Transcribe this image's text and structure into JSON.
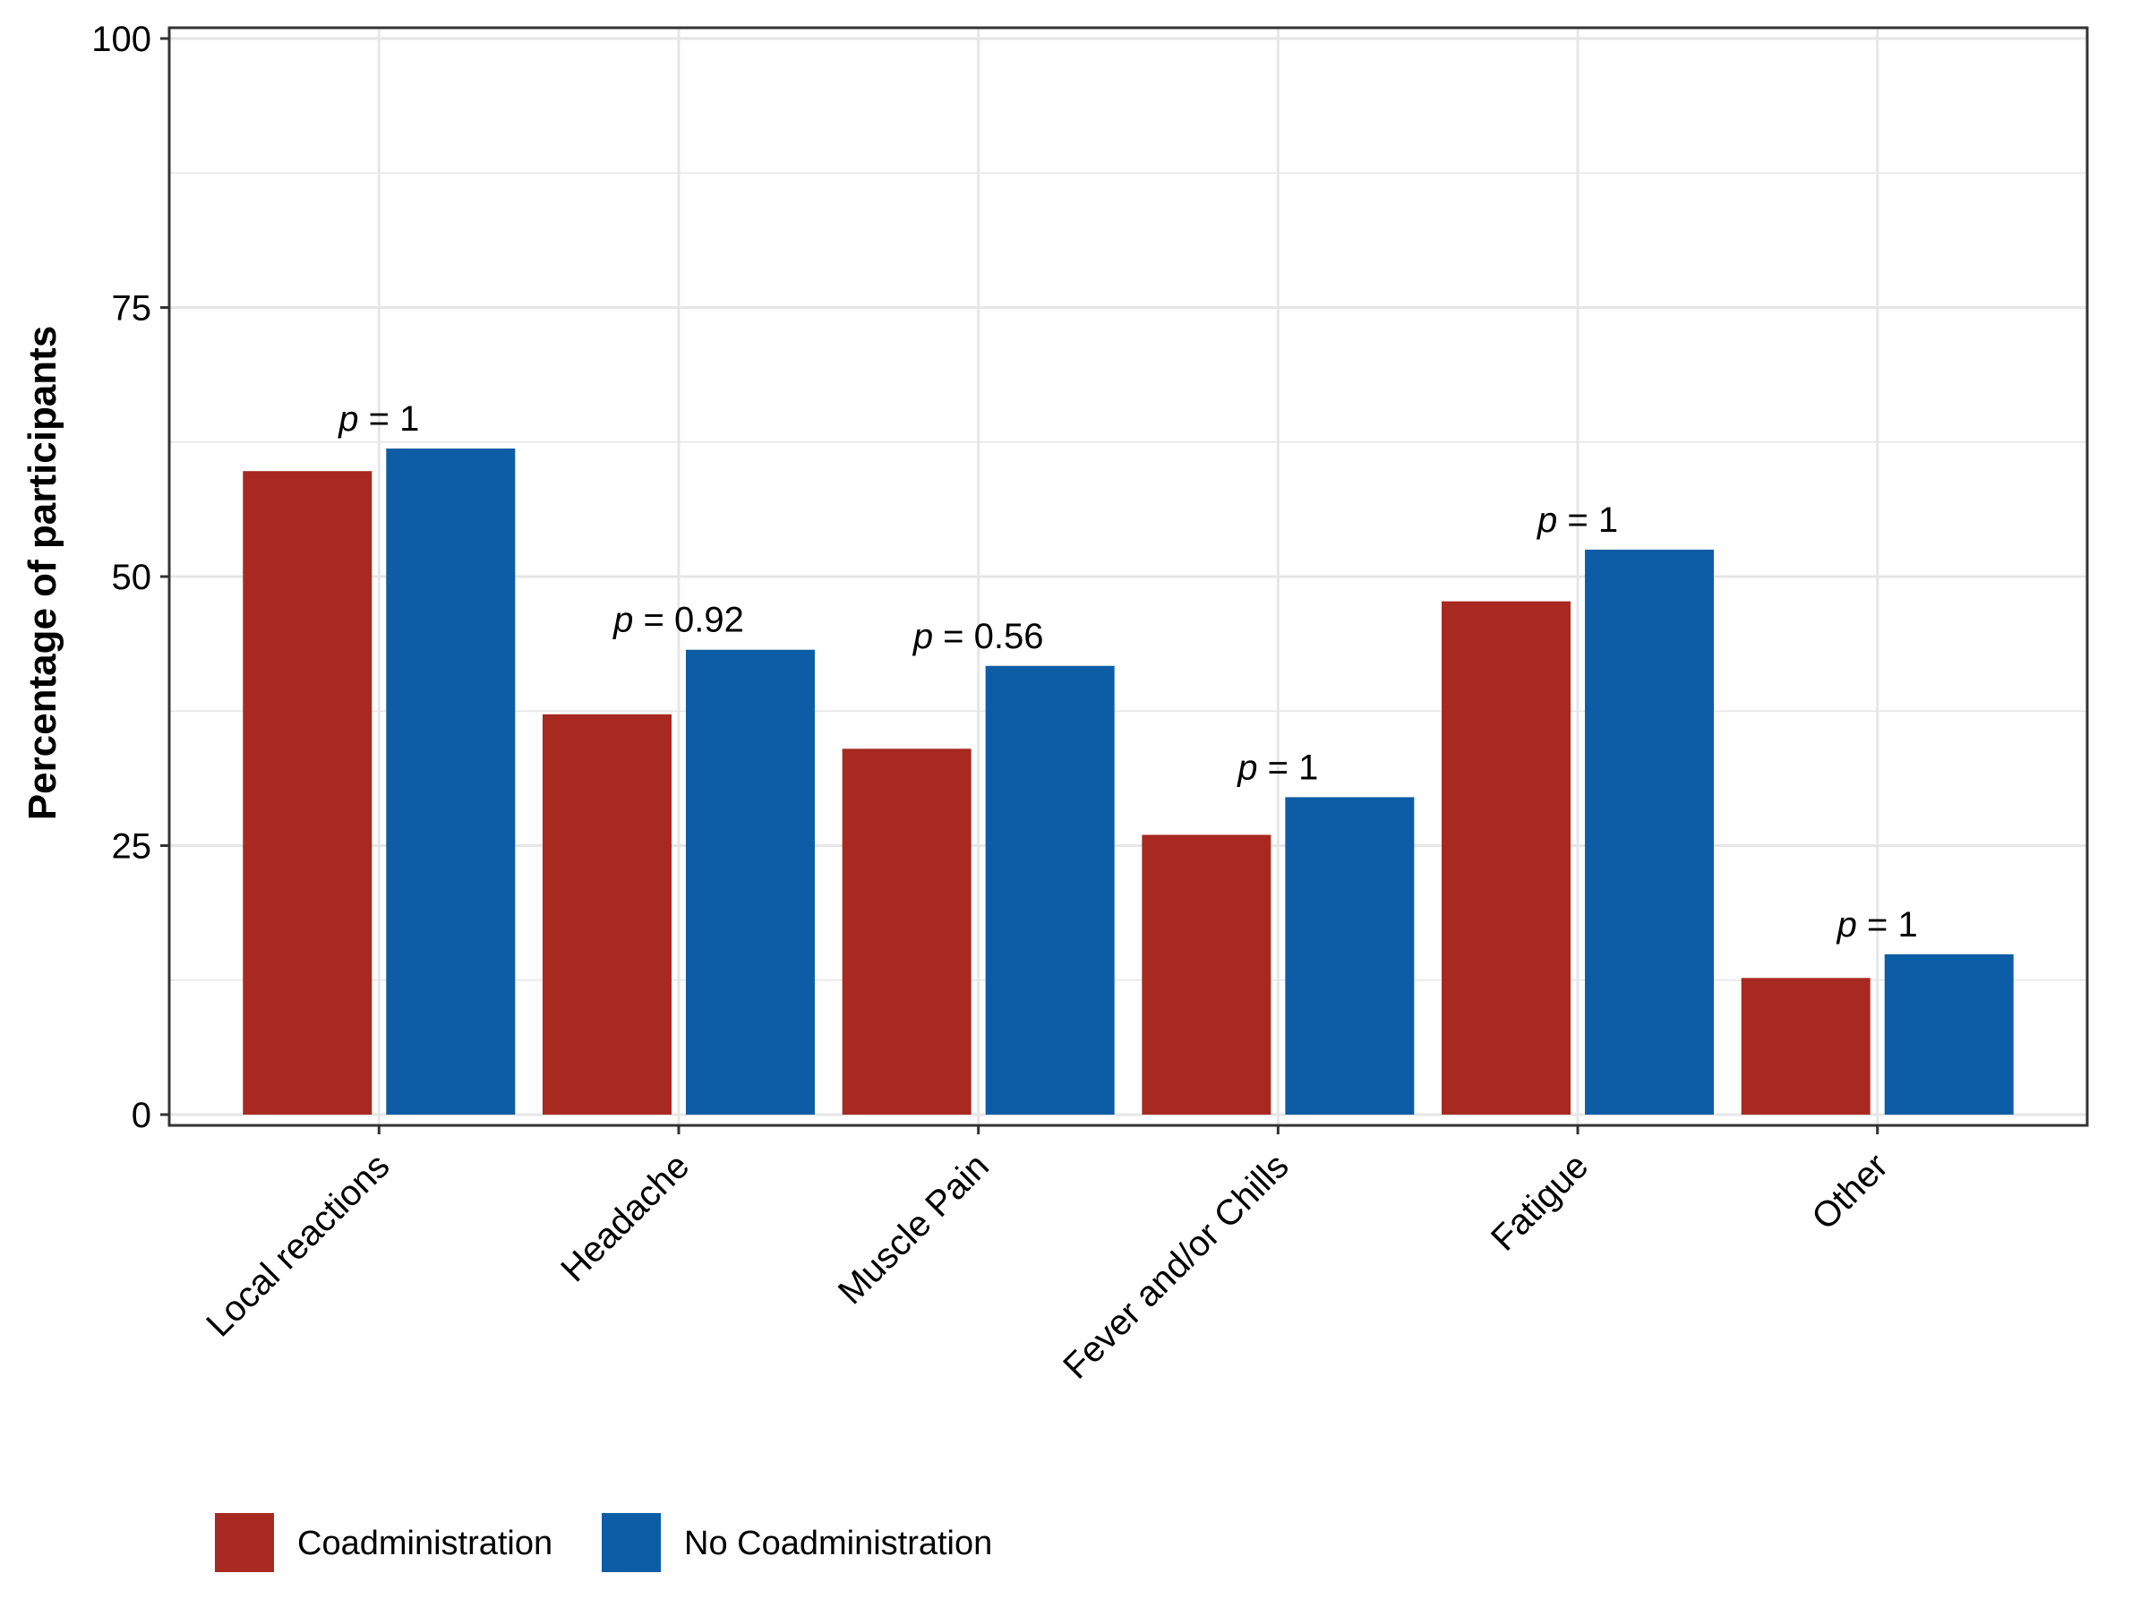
{
  "chart_data": {
    "type": "bar",
    "ylabel": "Percentage of participants",
    "xlabel": "",
    "ylim": [
      0,
      100
    ],
    "yticks": [
      0,
      25,
      50,
      75,
      100
    ],
    "grid": true,
    "legend_position": "bottom-left",
    "categories": [
      "Local reactions",
      "Headache",
      "Muscle Pain",
      "Fever and/or Chills",
      "Fatigue",
      "Other"
    ],
    "series": [
      {
        "name": "Coadministration",
        "color": "#A82920",
        "values": [
          59.8,
          37.2,
          34.0,
          26.0,
          47.7,
          12.7
        ]
      },
      {
        "name": "No Coadministration",
        "color": "#0D5DA6",
        "values": [
          61.9,
          43.2,
          41.7,
          29.5,
          52.5,
          14.9
        ]
      }
    ],
    "annotations": [
      {
        "category": "Local reactions",
        "prefix": "p",
        "text": " = 1"
      },
      {
        "category": "Headache",
        "prefix": "p",
        "text": " = 0.92"
      },
      {
        "category": "Muscle Pain",
        "prefix": "p",
        "text": " = 0.56"
      },
      {
        "category": "Fever and/or Chills",
        "prefix": "p",
        "text": " = 1"
      },
      {
        "category": "Fatigue",
        "prefix": "p",
        "text": " = 1"
      },
      {
        "category": "Other",
        "prefix": "p",
        "text": " = 1"
      }
    ],
    "colors": {
      "grid": "#E6E6E6",
      "border": "#333333"
    }
  }
}
